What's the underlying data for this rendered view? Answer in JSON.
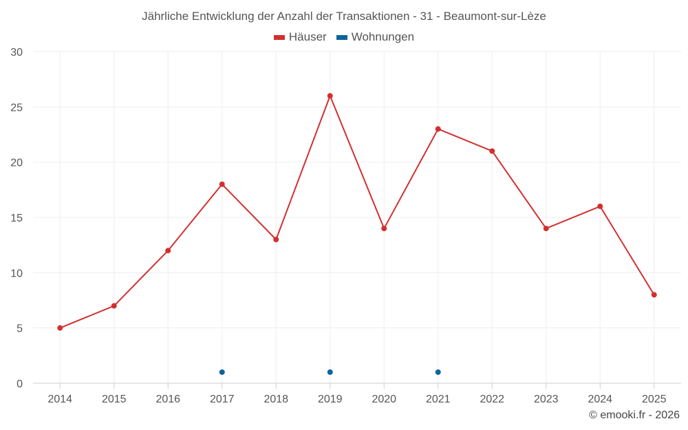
{
  "colors": {
    "houses": "#d32f2f",
    "apartments": "#0d6599",
    "grid": "#eeeeee",
    "axis": "#cccccc",
    "text": "#555555"
  },
  "chart_data": {
    "type": "line",
    "title": "Jährliche Entwicklung der Anzahl der Transaktionen - 31 - Beaumont-sur-Lèze",
    "categories": [
      "2014",
      "2015",
      "2016",
      "2017",
      "2018",
      "2019",
      "2020",
      "2021",
      "2022",
      "2023",
      "2024",
      "2025"
    ],
    "series": [
      {
        "name": "Häuser",
        "values": [
          5,
          7,
          12,
          18,
          13,
          26,
          14,
          23,
          21,
          14,
          16,
          8
        ]
      },
      {
        "name": "Wohnungen",
        "values": [
          null,
          null,
          null,
          1,
          null,
          1,
          null,
          1,
          null,
          null,
          null,
          null
        ]
      }
    ],
    "yticks": [
      "0",
      "5",
      "10",
      "15",
      "20",
      "25",
      "30"
    ],
    "ylim": [
      0,
      30
    ],
    "xlabel": "",
    "ylabel": "",
    "grid": true,
    "legend": "top-center"
  },
  "credit": "© emooki.fr - 2026"
}
